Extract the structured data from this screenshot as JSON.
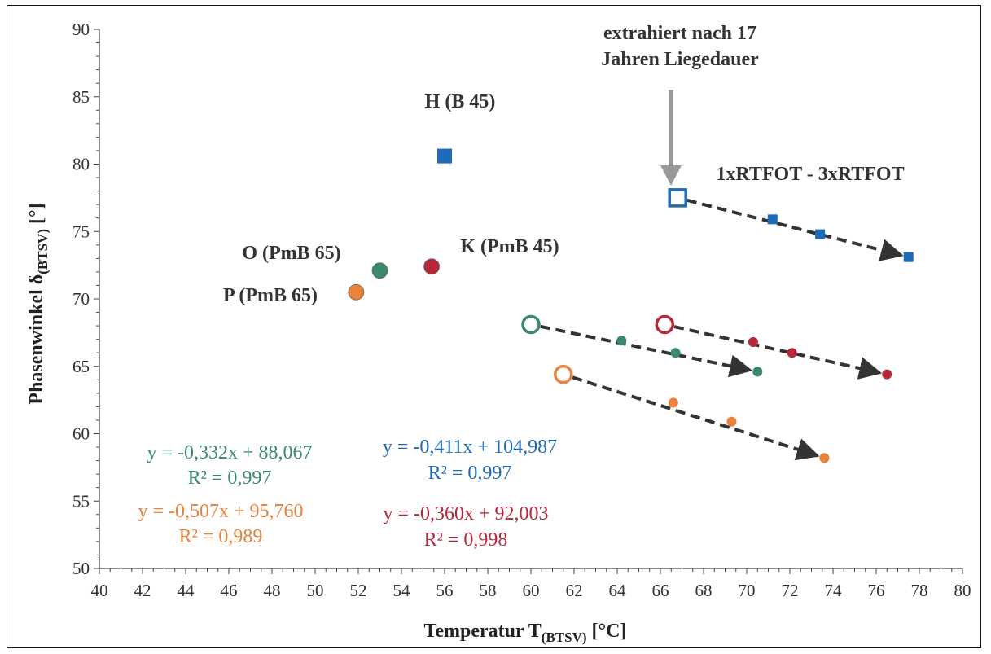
{
  "chart_data": {
    "type": "scatter",
    "xlabel": "Temperatur T",
    "xlabel_sub": "(BTSV)",
    "xlabel_unit": " [°C]",
    "ylabel": "Phasenwinkel δ",
    "ylabel_sub": "(BTSV)",
    "ylabel_unit": " [°]",
    "xlim": [
      40,
      80
    ],
    "ylim": [
      50,
      90
    ],
    "x_ticks": [
      "40",
      "42",
      "44",
      "46",
      "48",
      "50",
      "52",
      "54",
      "56",
      "58",
      "60",
      "62",
      "64",
      "66",
      "68",
      "70",
      "72",
      "74",
      "76",
      "78",
      "80"
    ],
    "y_ticks": [
      "50",
      "55",
      "60",
      "65",
      "70",
      "75",
      "80",
      "85",
      "90"
    ],
    "colors": {
      "blue": "#1f6bb5",
      "green": "#3a8a6a",
      "red": "#b8263a",
      "orange": "#e9823a",
      "arrow": "#333333",
      "annotation_arrow": "#9a9a9a"
    },
    "series": [
      {
        "name": "H (B 45)",
        "color": "blue",
        "marker": "square",
        "points": [
          [
            56.0,
            80.6
          ]
        ],
        "trend": [
          [
            66.8,
            77.5
          ],
          [
            71.2,
            75.9
          ],
          [
            73.4,
            74.8
          ],
          [
            77.5,
            73.1
          ]
        ]
      },
      {
        "name": "O (PmB 65)",
        "color": "green",
        "marker": "circle",
        "points": [
          [
            53.0,
            72.1
          ]
        ],
        "trend": [
          [
            60.0,
            68.1
          ],
          [
            64.2,
            66.9
          ],
          [
            66.7,
            66.0
          ],
          [
            70.5,
            64.6
          ]
        ]
      },
      {
        "name": "K (PmB 45)",
        "color": "red",
        "marker": "circle",
        "points": [
          [
            55.4,
            72.4
          ]
        ],
        "trend": [
          [
            66.2,
            68.1
          ],
          [
            70.3,
            66.8
          ],
          [
            72.1,
            66.0
          ],
          [
            76.5,
            64.4
          ]
        ]
      },
      {
        "name": "P (PmB 65)",
        "color": "orange",
        "marker": "circle",
        "points": [
          [
            51.9,
            70.5
          ]
        ],
        "trend": [
          [
            61.5,
            64.4
          ],
          [
            66.6,
            62.3
          ],
          [
            69.3,
            60.9
          ],
          [
            73.6,
            58.2
          ]
        ]
      }
    ],
    "annotations": [
      {
        "text": "H (B 45)"
      },
      {
        "text": "O (PmB 65)"
      },
      {
        "text": "K (PmB 45)"
      },
      {
        "text": "P (PmB 65)"
      },
      {
        "text": "1xRTFOT - 3xRTFOT"
      },
      {
        "text": "extrahiert nach 17"
      },
      {
        "text": "Jahren Liegedauer"
      }
    ],
    "equations": [
      {
        "color": "green",
        "eq": "y = -0,332x + 88,067",
        "r2": "R² = 0,997"
      },
      {
        "color": "blue",
        "eq": "y = -0,411x + 104,987",
        "r2": "R² = 0,997"
      },
      {
        "color": "orange",
        "eq": "y = -0,507x + 95,760",
        "r2": "R² = 0,989"
      },
      {
        "color": "red",
        "eq": "y = -0,360x + 92,003",
        "r2": "R² = 0,998"
      }
    ]
  }
}
